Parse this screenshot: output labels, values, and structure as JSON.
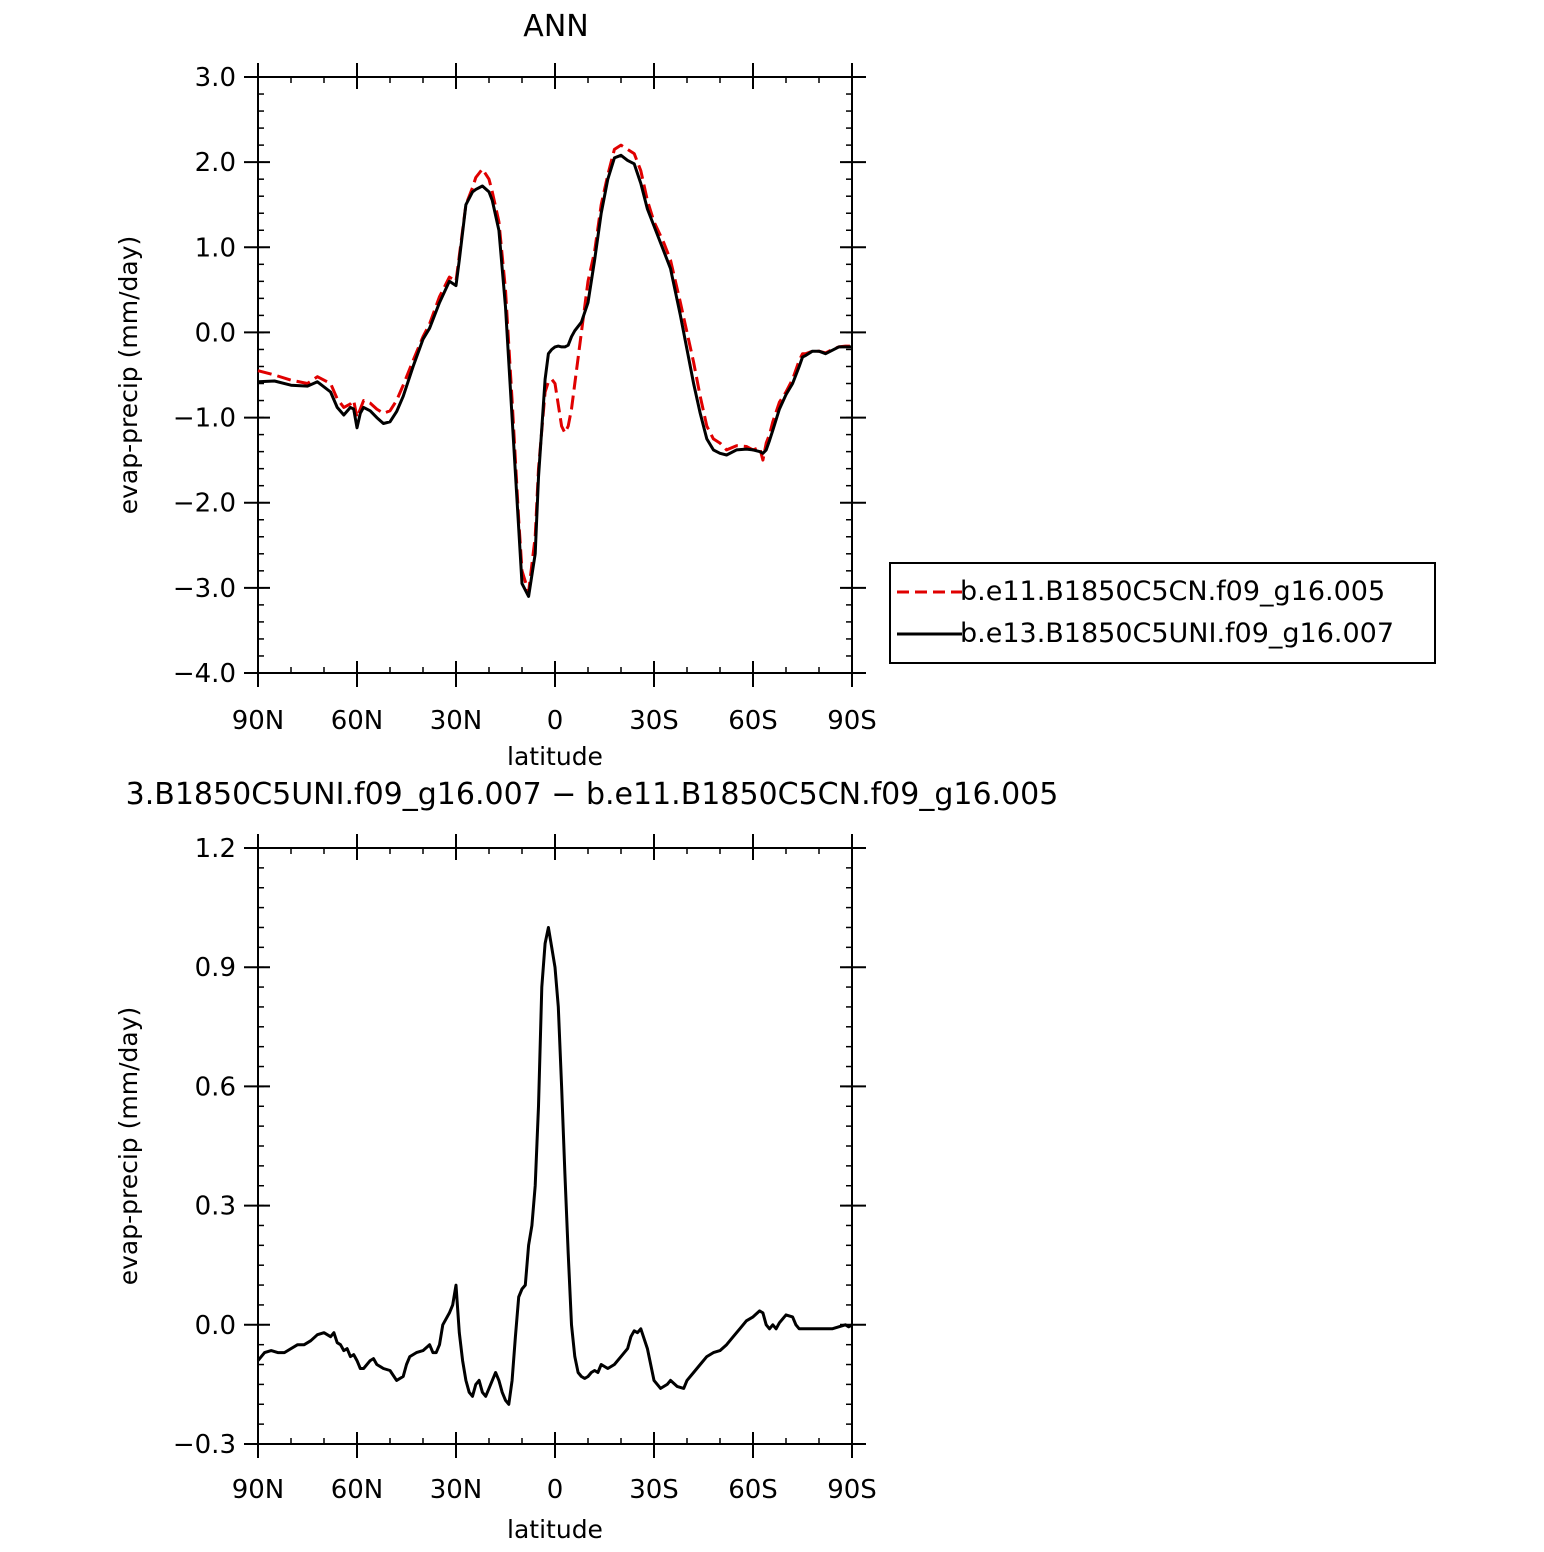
{
  "colors": {
    "control": "#e00000",
    "test": "#000000"
  },
  "chart_data": [
    {
      "type": "line",
      "title": "ANN",
      "xlabel": "latitude",
      "ylabel": "evap-precip (mm/day)",
      "xlim": [
        90,
        -90
      ],
      "ylim": [
        -4.0,
        3.0
      ],
      "xticks": [
        {
          "value": 90,
          "label": "90N"
        },
        {
          "value": 60,
          "label": "60N"
        },
        {
          "value": 30,
          "label": "30N"
        },
        {
          "value": 0,
          "label": "0"
        },
        {
          "value": -30,
          "label": "30S"
        },
        {
          "value": -60,
          "label": "60S"
        },
        {
          "value": -90,
          "label": "90S"
        }
      ],
      "yticks": [
        {
          "value": 3.0,
          "label": "3.0"
        },
        {
          "value": 2.0,
          "label": "2.0"
        },
        {
          "value": 1.0,
          "label": "1.0"
        },
        {
          "value": 0.0,
          "label": "0.0"
        },
        {
          "value": -1.0,
          "label": "−1.0"
        },
        {
          "value": -2.0,
          "label": "−2.0"
        },
        {
          "value": -3.0,
          "label": "−3.0"
        },
        {
          "value": -4.0,
          "label": "−4.0"
        }
      ],
      "legend": {
        "placement": "right"
      },
      "series": [
        {
          "name": "b.e11.B1850C5CN.f09_g16.005",
          "style": "dashed",
          "color": "#e00000",
          "x": [
            90,
            85,
            80,
            75,
            72,
            68,
            66,
            64,
            62,
            61,
            60,
            59,
            58,
            56,
            54,
            52,
            50,
            48,
            46,
            43,
            40,
            38,
            35,
            32,
            30,
            29,
            27,
            25,
            24,
            22,
            20,
            19,
            17,
            15,
            13,
            11,
            10,
            8,
            6,
            5,
            3,
            2,
            1,
            0,
            -1,
            -2,
            -3,
            -4,
            -5,
            -6,
            -8,
            -10,
            -12,
            -14,
            -16,
            -18,
            -20,
            -22,
            -24,
            -26,
            -28,
            -30,
            -33,
            -35,
            -38,
            -40,
            -42,
            -44,
            -46,
            -48,
            -50,
            -52,
            -55,
            -58,
            -60,
            -62,
            -63,
            -64,
            -65,
            -66,
            -68,
            -70,
            -72,
            -74,
            -75,
            -76,
            -78,
            -80,
            -82,
            -84,
            -86,
            -88,
            -90
          ],
          "y": [
            -0.45,
            -0.5,
            -0.56,
            -0.6,
            -0.52,
            -0.6,
            -0.78,
            -0.88,
            -0.84,
            -0.8,
            -1.0,
            -0.9,
            -0.8,
            -0.83,
            -0.9,
            -0.95,
            -0.92,
            -0.8,
            -0.62,
            -0.33,
            -0.05,
            0.1,
            0.42,
            0.65,
            0.6,
            0.9,
            1.5,
            1.7,
            1.82,
            1.92,
            1.8,
            1.65,
            1.3,
            0.5,
            -0.8,
            -2.2,
            -2.8,
            -3.05,
            -2.4,
            -1.6,
            -0.7,
            -0.58,
            -0.55,
            -0.6,
            -0.85,
            -1.1,
            -1.18,
            -1.1,
            -0.9,
            -0.6,
            0.0,
            0.6,
            0.95,
            1.5,
            1.85,
            2.15,
            2.2,
            2.15,
            2.1,
            1.9,
            1.55,
            1.3,
            1.05,
            0.85,
            0.35,
            0.0,
            -0.35,
            -0.75,
            -1.1,
            -1.25,
            -1.3,
            -1.38,
            -1.33,
            -1.34,
            -1.38,
            -1.35,
            -1.5,
            -1.3,
            -1.2,
            -1.05,
            -0.82,
            -0.7,
            -0.55,
            -0.33,
            -0.25,
            -0.25,
            -0.22,
            -0.22,
            -0.24,
            -0.2,
            -0.17,
            -0.16,
            -0.16
          ]
        },
        {
          "name": "b.e13.B1850C5UNI.f09_g16.007",
          "style": "solid",
          "color": "#000000",
          "x": [
            90,
            85,
            80,
            75,
            72,
            68,
            66,
            64,
            62,
            61,
            60,
            59,
            58,
            56,
            54,
            52,
            50,
            48,
            46,
            43,
            40,
            38,
            35,
            32,
            30,
            29,
            27,
            25,
            24,
            22,
            20,
            19,
            17,
            15,
            13,
            11,
            10,
            8,
            6,
            5,
            3,
            2,
            1,
            0,
            -1,
            -2,
            -3,
            -4,
            -5,
            -6,
            -8,
            -10,
            -12,
            -14,
            -16,
            -18,
            -20,
            -22,
            -24,
            -26,
            -28,
            -30,
            -33,
            -35,
            -38,
            -40,
            -42,
            -44,
            -46,
            -48,
            -50,
            -52,
            -55,
            -58,
            -60,
            -62,
            -63,
            -64,
            -65,
            -66,
            -68,
            -70,
            -72,
            -74,
            -75,
            -76,
            -78,
            -80,
            -82,
            -84,
            -86,
            -88,
            -90
          ],
          "y": [
            -0.58,
            -0.57,
            -0.62,
            -0.63,
            -0.58,
            -0.7,
            -0.88,
            -0.97,
            -0.88,
            -0.9,
            -1.12,
            -0.95,
            -0.88,
            -0.92,
            -1.0,
            -1.07,
            -1.05,
            -0.93,
            -0.75,
            -0.4,
            -0.08,
            0.05,
            0.35,
            0.6,
            0.55,
            0.85,
            1.5,
            1.65,
            1.68,
            1.72,
            1.65,
            1.55,
            1.2,
            0.3,
            -1.0,
            -2.3,
            -2.95,
            -3.1,
            -2.6,
            -1.7,
            -0.55,
            -0.25,
            -0.2,
            -0.17,
            -0.16,
            -0.17,
            -0.17,
            -0.15,
            -0.05,
            0.02,
            0.12,
            0.35,
            0.85,
            1.4,
            1.8,
            2.05,
            2.08,
            2.02,
            1.98,
            1.75,
            1.45,
            1.25,
            0.95,
            0.75,
            0.2,
            -0.2,
            -0.6,
            -0.95,
            -1.25,
            -1.38,
            -1.42,
            -1.44,
            -1.38,
            -1.37,
            -1.38,
            -1.4,
            -1.42,
            -1.38,
            -1.27,
            -1.15,
            -0.9,
            -0.73,
            -0.6,
            -0.4,
            -0.29,
            -0.27,
            -0.22,
            -0.22,
            -0.25,
            -0.21,
            -0.17,
            -0.17,
            -0.17
          ]
        }
      ]
    },
    {
      "type": "line",
      "title": "3.B1850C5UNI.f09_g16.007 − b.e11.B1850C5CN.f09_g16.005",
      "xlabel": "latitude",
      "ylabel": "evap-precip (mm/day)",
      "xlim": [
        90,
        -90
      ],
      "ylim": [
        -0.3,
        1.2
      ],
      "xticks": [
        {
          "value": 90,
          "label": "90N"
        },
        {
          "value": 60,
          "label": "60N"
        },
        {
          "value": 30,
          "label": "30N"
        },
        {
          "value": 0,
          "label": "0"
        },
        {
          "value": -30,
          "label": "30S"
        },
        {
          "value": -60,
          "label": "60S"
        },
        {
          "value": -90,
          "label": "90S"
        }
      ],
      "yticks": [
        {
          "value": 1.2,
          "label": "1.2"
        },
        {
          "value": 0.9,
          "label": "0.9"
        },
        {
          "value": 0.6,
          "label": "0.6"
        },
        {
          "value": 0.3,
          "label": "0.3"
        },
        {
          "value": 0.0,
          "label": "0.0"
        },
        {
          "value": -0.3,
          "label": "−0.3"
        }
      ],
      "series": [
        {
          "style": "solid",
          "color": "#000000",
          "x": [
            90,
            88,
            86,
            84,
            82,
            80,
            78,
            76,
            74,
            72,
            70,
            68,
            67,
            66,
            65,
            64,
            63,
            62,
            61,
            60,
            59,
            58,
            56,
            55,
            54,
            52,
            50,
            48,
            46,
            45,
            44,
            42,
            40,
            38,
            37,
            36,
            35,
            34,
            32,
            31,
            30,
            29,
            28,
            27,
            26,
            25,
            24,
            23,
            22,
            21,
            20,
            19,
            18,
            17,
            16,
            15,
            14,
            13,
            12,
            11,
            10,
            9,
            8,
            7,
            6,
            5,
            4,
            3,
            2,
            1,
            0,
            -1,
            -2,
            -3,
            -4,
            -5,
            -6,
            -7,
            -8,
            -9,
            -10,
            -11,
            -12,
            -13,
            -14,
            -15,
            -16,
            -18,
            -20,
            -22,
            -23,
            -24,
            -25,
            -26,
            -28,
            -30,
            -32,
            -34,
            -35,
            -37,
            -39,
            -40,
            -42,
            -44,
            -46,
            -48,
            -50,
            -52,
            -54,
            -56,
            -58,
            -60,
            -62,
            -63,
            -64,
            -65,
            -66,
            -67,
            -68,
            -70,
            -72,
            -73,
            -74,
            -76,
            -78,
            -80,
            -82,
            -84,
            -86,
            -88,
            -89,
            -90
          ],
          "y": [
            -0.09,
            -0.07,
            -0.065,
            -0.07,
            -0.07,
            -0.06,
            -0.05,
            -0.05,
            -0.04,
            -0.025,
            -0.02,
            -0.03,
            -0.02,
            -0.045,
            -0.05,
            -0.065,
            -0.06,
            -0.08,
            -0.075,
            -0.09,
            -0.11,
            -0.11,
            -0.09,
            -0.085,
            -0.1,
            -0.11,
            -0.115,
            -0.14,
            -0.13,
            -0.1,
            -0.08,
            -0.07,
            -0.065,
            -0.05,
            -0.07,
            -0.07,
            -0.05,
            0.0,
            0.03,
            0.05,
            0.1,
            -0.02,
            -0.09,
            -0.14,
            -0.17,
            -0.18,
            -0.15,
            -0.14,
            -0.17,
            -0.18,
            -0.16,
            -0.14,
            -0.12,
            -0.14,
            -0.17,
            -0.19,
            -0.2,
            -0.14,
            -0.03,
            0.07,
            0.09,
            0.1,
            0.2,
            0.25,
            0.35,
            0.55,
            0.85,
            0.96,
            1.0,
            0.95,
            0.9,
            0.8,
            0.6,
            0.38,
            0.18,
            0.0,
            -0.08,
            -0.12,
            -0.13,
            -0.135,
            -0.13,
            -0.12,
            -0.115,
            -0.12,
            -0.1,
            -0.105,
            -0.11,
            -0.1,
            -0.08,
            -0.06,
            -0.03,
            -0.015,
            -0.02,
            -0.01,
            -0.06,
            -0.14,
            -0.16,
            -0.15,
            -0.14,
            -0.155,
            -0.16,
            -0.14,
            -0.12,
            -0.1,
            -0.08,
            -0.07,
            -0.065,
            -0.05,
            -0.03,
            -0.01,
            0.01,
            0.02,
            0.035,
            0.03,
            0.0,
            -0.01,
            0.0,
            -0.01,
            0.005,
            0.025,
            0.02,
            0.0,
            -0.01,
            -0.01,
            -0.01,
            -0.01,
            -0.01,
            -0.01,
            -0.005,
            0.0,
            -0.005,
            0.0
          ]
        }
      ]
    }
  ]
}
